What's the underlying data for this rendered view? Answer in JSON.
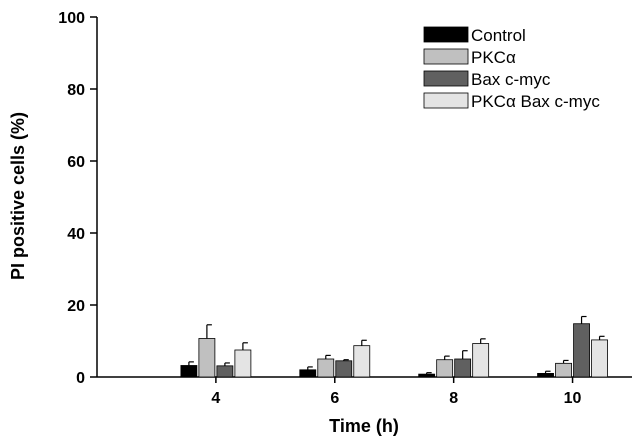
{
  "chart_data": {
    "type": "bar",
    "xlabel": "Time (h)",
    "ylabel": "PI positive cells (%)",
    "ylim": [
      0,
      100
    ],
    "yticks": [
      0,
      20,
      40,
      60,
      80,
      100
    ],
    "categories": [
      "4",
      "6",
      "8",
      "10"
    ],
    "series": [
      {
        "name": "Control",
        "color": "#000000",
        "values": [
          3.2,
          2.0,
          0.8,
          1.0
        ],
        "errors": [
          1.0,
          0.8,
          0.4,
          0.6
        ]
      },
      {
        "name": "PKCα",
        "color": "#c0c0c0",
        "values": [
          10.7,
          5.0,
          4.8,
          3.8
        ],
        "errors": [
          3.8,
          1.0,
          1.0,
          0.8
        ]
      },
      {
        "name": "Bax c-myc",
        "color": "#606060",
        "values": [
          3.1,
          4.5,
          5.0,
          14.8
        ],
        "errors": [
          0.8,
          0.3,
          2.3,
          2.0
        ]
      },
      {
        "name": "PKCα Bax c-myc",
        "color": "#e4e4e4",
        "values": [
          7.5,
          8.7,
          9.3,
          10.3
        ],
        "errors": [
          2.0,
          1.5,
          1.3,
          1.0
        ]
      }
    ],
    "legend_position": "top-right",
    "error_bars": true,
    "grid": false
  }
}
